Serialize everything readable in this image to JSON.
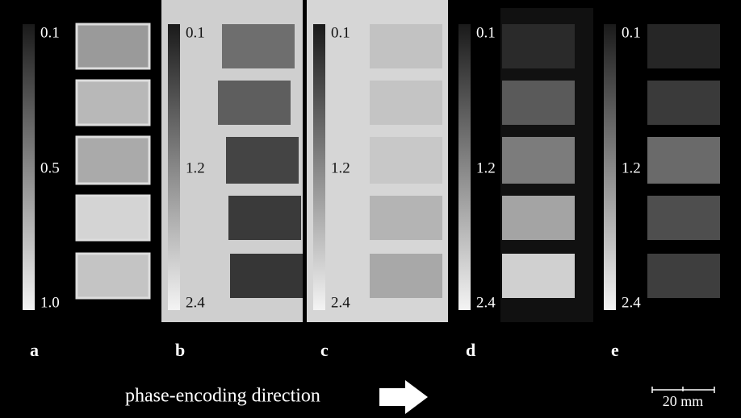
{
  "panels": [
    {
      "label": "a",
      "colorbar": {
        "top": "0.1",
        "middle": "0.5",
        "bottom": "1.0"
      }
    },
    {
      "label": "b",
      "colorbar": {
        "top": "0.1",
        "middle": "1.2",
        "bottom": "2.4"
      }
    },
    {
      "label": "c",
      "colorbar": {
        "top": "0.1",
        "middle": "1.2",
        "bottom": "2.4"
      }
    },
    {
      "label": "d",
      "colorbar": {
        "top": "0.1",
        "middle": "1.2",
        "bottom": "2.4"
      }
    },
    {
      "label": "e",
      "colorbar": {
        "top": "0.1",
        "middle": "1.2",
        "bottom": "2.4"
      }
    }
  ],
  "caption": "phase-encoding direction",
  "scale_bar": "20 mm"
}
